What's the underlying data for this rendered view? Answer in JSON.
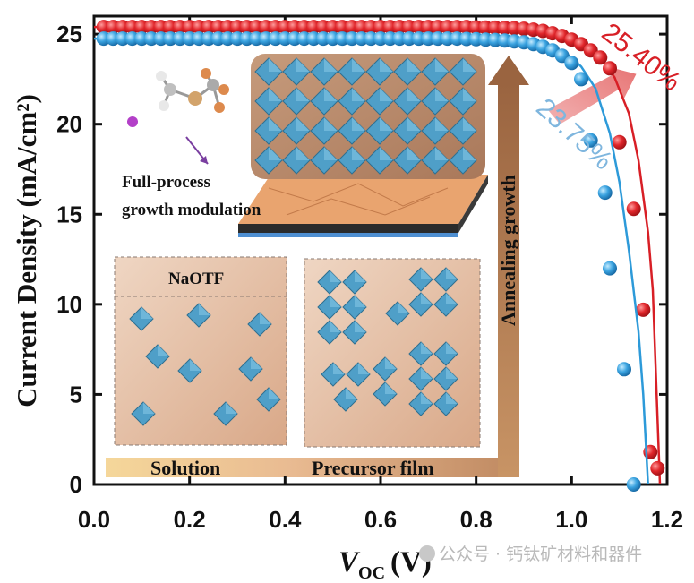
{
  "chart_data": {
    "type": "line",
    "xlabel_main": "V",
    "xlabel_sub": "OC",
    "xlabel_unit": "(V)",
    "ylabel": "Current Density (mA/cm²)",
    "xlim": [
      0.0,
      1.2
    ],
    "ylim": [
      0,
      26
    ],
    "xticks": [
      "0.0",
      "0.2",
      "0.4",
      "0.6",
      "0.8",
      "1.0",
      "1.2"
    ],
    "yticks": [
      "0",
      "5",
      "10",
      "15",
      "20",
      "25"
    ],
    "xtick_values": [
      0.0,
      0.2,
      0.4,
      0.6,
      0.8,
      1.0,
      1.2
    ],
    "ytick_values": [
      0,
      5,
      10,
      15,
      20,
      25
    ],
    "series": [
      {
        "color": "#d81f26",
        "marker_color": "#d62a30",
        "annotation": "25.40%",
        "x": [
          0.0,
          0.2,
          0.4,
          0.6,
          0.8,
          0.9,
          0.95,
          1.0,
          1.03,
          1.06,
          1.09,
          1.12,
          1.14,
          1.16,
          1.17,
          1.185
        ],
        "y": [
          25.4,
          25.4,
          25.4,
          25.4,
          25.38,
          25.35,
          25.25,
          24.9,
          24.5,
          23.8,
          22.6,
          20.6,
          18.0,
          14.0,
          10.8,
          0
        ],
        "markers_x": [
          0.02,
          0.04,
          0.06,
          0.08,
          0.1,
          0.12,
          0.14,
          0.16,
          0.18,
          0.2,
          0.22,
          0.24,
          0.26,
          0.28,
          0.3,
          0.32,
          0.34,
          0.36,
          0.38,
          0.4,
          0.42,
          0.44,
          0.46,
          0.48,
          0.5,
          0.52,
          0.54,
          0.56,
          0.58,
          0.6,
          0.62,
          0.64,
          0.66,
          0.68,
          0.7,
          0.72,
          0.74,
          0.76,
          0.78,
          0.8,
          0.82,
          0.84,
          0.86,
          0.88,
          0.9,
          0.92,
          0.94,
          0.96,
          0.98,
          1.0,
          1.02,
          1.04,
          1.06,
          1.08,
          1.1,
          1.13,
          1.15,
          1.165,
          1.18
        ],
        "markers_y": [
          25.4,
          25.4,
          25.4,
          25.4,
          25.4,
          25.4,
          25.4,
          25.4,
          25.4,
          25.4,
          25.4,
          25.4,
          25.4,
          25.4,
          25.4,
          25.4,
          25.4,
          25.4,
          25.4,
          25.4,
          25.4,
          25.4,
          25.4,
          25.4,
          25.4,
          25.4,
          25.4,
          25.4,
          25.4,
          25.4,
          25.4,
          25.4,
          25.4,
          25.4,
          25.4,
          25.4,
          25.4,
          25.4,
          25.4,
          25.38,
          25.37,
          25.36,
          25.35,
          25.33,
          25.3,
          25.25,
          25.18,
          25.05,
          24.9,
          24.7,
          24.45,
          24.1,
          23.7,
          23.1,
          19.0,
          15.3,
          9.7,
          1.8,
          0.9
        ]
      },
      {
        "color": "#2d9ad9",
        "marker_color": "#3aa3e0",
        "annotation": "23.75%",
        "x": [
          0.0,
          0.2,
          0.4,
          0.6,
          0.8,
          0.9,
          0.95,
          0.99,
          1.02,
          1.05,
          1.08,
          1.1,
          1.12,
          1.14,
          1.15,
          1.16
        ],
        "y": [
          24.75,
          24.75,
          24.75,
          24.75,
          24.72,
          24.65,
          24.4,
          23.9,
          23.2,
          22.0,
          19.5,
          16.8,
          13.0,
          8.5,
          5.0,
          0
        ],
        "markers_x": [
          0.02,
          0.04,
          0.06,
          0.08,
          0.1,
          0.12,
          0.14,
          0.16,
          0.18,
          0.2,
          0.22,
          0.24,
          0.26,
          0.28,
          0.3,
          0.32,
          0.34,
          0.36,
          0.38,
          0.4,
          0.42,
          0.44,
          0.46,
          0.48,
          0.5,
          0.52,
          0.54,
          0.56,
          0.58,
          0.6,
          0.62,
          0.64,
          0.66,
          0.68,
          0.7,
          0.72,
          0.74,
          0.76,
          0.78,
          0.8,
          0.82,
          0.84,
          0.86,
          0.88,
          0.9,
          0.92,
          0.94,
          0.96,
          0.98,
          1.0,
          1.02,
          1.04,
          1.07,
          1.08,
          1.11,
          1.13
        ],
        "markers_y": [
          24.75,
          24.75,
          24.75,
          24.75,
          24.75,
          24.75,
          24.75,
          24.75,
          24.75,
          24.75,
          24.75,
          24.75,
          24.75,
          24.75,
          24.75,
          24.75,
          24.75,
          24.75,
          24.75,
          24.75,
          24.75,
          24.75,
          24.75,
          24.75,
          24.75,
          24.75,
          24.75,
          24.75,
          24.75,
          24.75,
          24.75,
          24.75,
          24.75,
          24.75,
          24.75,
          24.75,
          24.75,
          24.75,
          24.73,
          24.72,
          24.7,
          24.68,
          24.65,
          24.6,
          24.55,
          24.45,
          24.3,
          24.1,
          23.8,
          23.4,
          22.5,
          19.1,
          16.2,
          12.0,
          6.4,
          0
        ]
      }
    ],
    "inset": {
      "molecule_caption_line1": "Full-process",
      "molecule_caption_line2": "growth modulation",
      "panel_label": "NaOTF",
      "arrow_vertical_label": "Annealing growth",
      "stage1_label": "Solution",
      "stage2_label": "Precursor film"
    }
  },
  "watermark": "公众号 · 钙钛矿材料和器件",
  "colors": {
    "red": "#d81f26",
    "blue": "#2d9ad9",
    "brown_arrow": "#b07a4f",
    "inset_bg": "#e7c3a6"
  }
}
